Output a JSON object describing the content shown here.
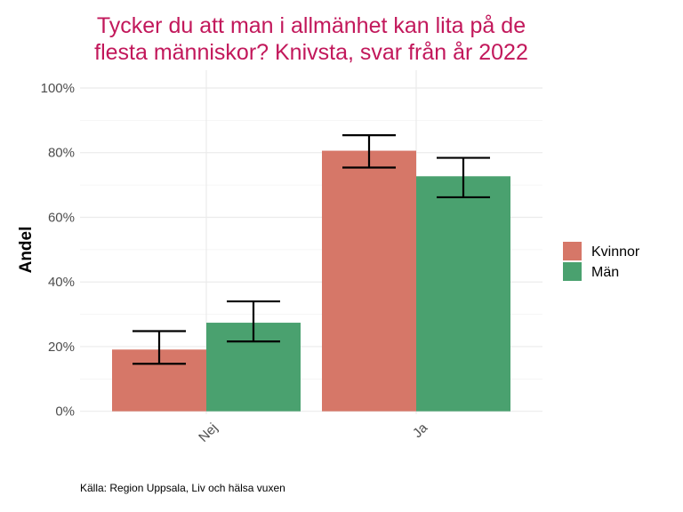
{
  "chart_data": {
    "type": "bar",
    "title": "Tycker du att man i allmänhet kan lita på de flesta människor? Knivsta, svar från år 2022",
    "title_lines": [
      "Tycker du att man i allmänhet kan lita på de",
      "flesta människor? Knivsta, svar från år 2022"
    ],
    "xlabel": "",
    "ylabel": "Andel",
    "ylim": [
      0,
      100
    ],
    "yticks": [
      "0%",
      "20%",
      "40%",
      "60%",
      "80%",
      "100%"
    ],
    "categories": [
      "Nej",
      "Ja"
    ],
    "series": [
      {
        "name": "Kvinnor",
        "color": "#d67768",
        "values": [
          19.1,
          80.6
        ],
        "ci_low": [
          14.7,
          75.4
        ],
        "ci_high": [
          24.8,
          85.4
        ]
      },
      {
        "name": "Män",
        "color": "#4aa16f",
        "values": [
          27.4,
          72.7
        ],
        "ci_low": [
          21.6,
          66.2
        ],
        "ci_high": [
          34.0,
          78.4
        ]
      }
    ],
    "grid": true,
    "legend": "right",
    "caption": "Källa: Region Uppsala, Liv och hälsa vuxen"
  }
}
